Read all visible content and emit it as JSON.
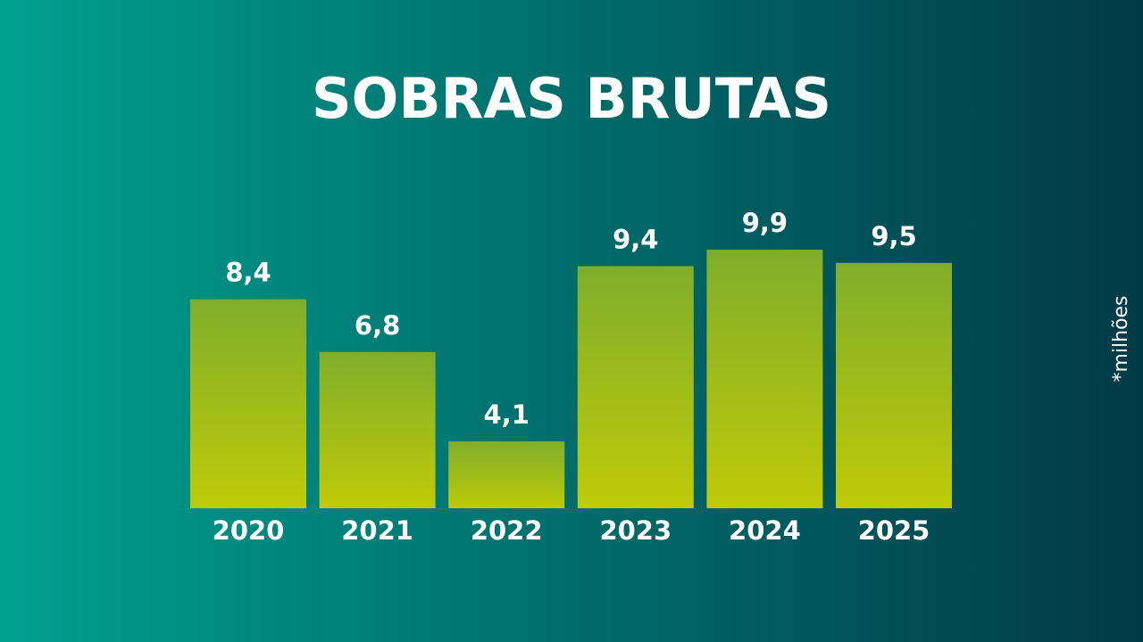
{
  "chart_data": {
    "type": "bar",
    "title": "SOBRAS BRUTAS",
    "categories": [
      "2020",
      "2021",
      "2022",
      "2023",
      "2024",
      "2025"
    ],
    "values": [
      8.4,
      6.8,
      4.1,
      9.4,
      9.9,
      9.5
    ],
    "value_labels": [
      "8,4",
      "6,8",
      "4,1",
      "9,4",
      "9,9",
      "9,5"
    ],
    "annotation": "*milhões",
    "gradient": [
      "#80ae2b",
      "#bfca08"
    ]
  }
}
